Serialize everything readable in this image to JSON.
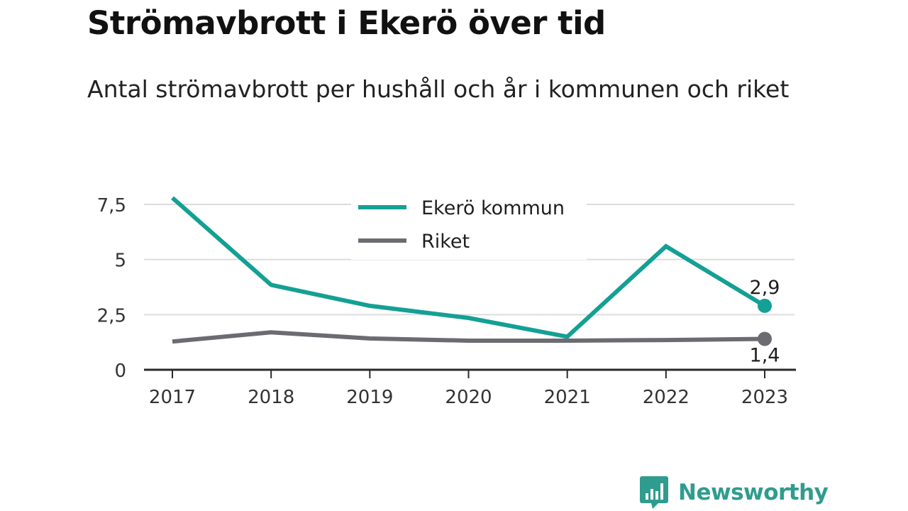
{
  "header": {
    "title": "Strömavbrott i Ekerö över tid",
    "subtitle": "Antal strömavbrott per hushåll och år i kommunen och riket"
  },
  "brand": {
    "name": "Newsworthy",
    "icon": "newsworthy-logo-icon",
    "color": "#2f9c8f"
  },
  "chart_data": {
    "type": "line",
    "x": [
      "2017",
      "2018",
      "2019",
      "2020",
      "2021",
      "2022",
      "2023"
    ],
    "series": [
      {
        "name": "Ekerö kommun",
        "color": "#14a094",
        "values": [
          7.8,
          3.85,
          2.9,
          2.35,
          1.5,
          5.6,
          2.9
        ],
        "end_label": "2,9"
      },
      {
        "name": "Riket",
        "color": "#6d6b72",
        "values": [
          1.28,
          1.7,
          1.42,
          1.32,
          1.32,
          1.35,
          1.4
        ],
        "end_label": "1,4"
      }
    ],
    "y_ticks": [
      0,
      2.5,
      5,
      7.5
    ],
    "y_tick_labels": [
      "0",
      "2,5",
      "5",
      "7,5"
    ],
    "ylim": [
      0,
      7.5
    ],
    "xlabel": "",
    "ylabel": "",
    "grid": true,
    "legend_position": "top-center"
  }
}
